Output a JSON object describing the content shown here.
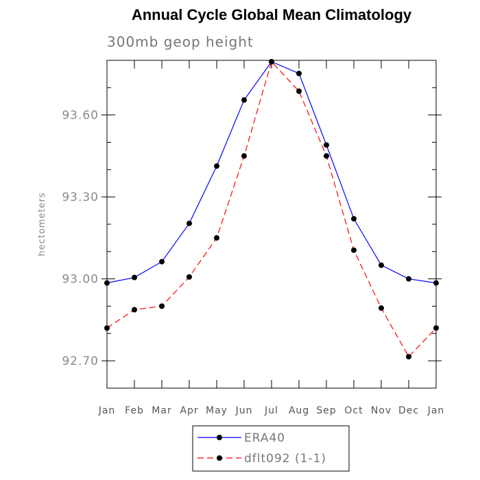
{
  "chart_data": {
    "type": "line",
    "title": "Annual Cycle Global Mean Climatology",
    "subtitle": "300mb geop height",
    "ylabel": "hectometers",
    "xlabel": "",
    "categories": [
      "Jan",
      "Feb",
      "Mar",
      "Apr",
      "May",
      "Jun",
      "Jul",
      "Aug",
      "Sep",
      "Oct",
      "Nov",
      "Dec",
      "Jan"
    ],
    "ylim": [
      92.6,
      93.8
    ],
    "yticks": [
      92.7,
      93.0,
      93.3,
      93.6
    ],
    "ytick_labels": [
      "92.70",
      "93.00",
      "93.30",
      "93.60"
    ],
    "series": [
      {
        "name": "ERA40",
        "color": "#0000ff",
        "dash": "solid",
        "values": [
          92.985,
          93.005,
          93.063,
          93.203,
          93.413,
          93.655,
          93.795,
          93.752,
          93.49,
          93.22,
          93.05,
          93.0,
          92.985
        ]
      },
      {
        "name": "dflt092 (1-1)",
        "color": "#ff0000",
        "dash": "dashed",
        "values": [
          92.82,
          92.887,
          92.9,
          93.007,
          93.15,
          93.45,
          93.795,
          93.687,
          93.45,
          93.105,
          92.893,
          92.715,
          92.82
        ]
      }
    ],
    "legend_position": "bottom-center"
  }
}
